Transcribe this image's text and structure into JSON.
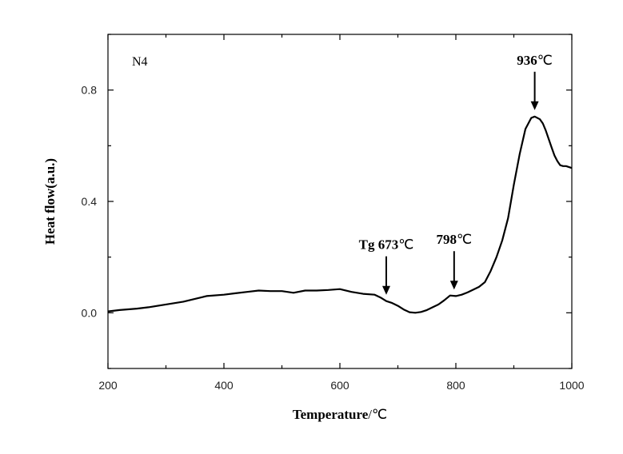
{
  "chart_data": {
    "type": "line",
    "panel_label": "N4",
    "xlabel": "Temperature",
    "xlabel_unit": "/℃",
    "ylabel": "Heat flow(a.u.)",
    "xlim": [
      200,
      1000
    ],
    "ylim": [
      -0.2,
      1.0
    ],
    "xticks": [
      200,
      400,
      600,
      800,
      1000
    ],
    "yticks": [
      0.0,
      0.4,
      0.8
    ],
    "ytick_labels": [
      "0.0",
      "0.4",
      "0.8"
    ],
    "grid": false,
    "series": [
      {
        "x": [
          200,
          220,
          250,
          270,
          300,
          330,
          350,
          370,
          400,
          420,
          440,
          460,
          480,
          500,
          520,
          540,
          560,
          580,
          600,
          620,
          640,
          660,
          670,
          680,
          690,
          700,
          710,
          720,
          730,
          740,
          750,
          760,
          770,
          780,
          790,
          800,
          810,
          820,
          830,
          840,
          850,
          860,
          870,
          880,
          890,
          900,
          910,
          920,
          930,
          936,
          945,
          950,
          955,
          960,
          965,
          970,
          975,
          980,
          985,
          990,
          1000
        ],
        "y": [
          0.005,
          0.01,
          0.015,
          0.02,
          0.03,
          0.04,
          0.05,
          0.06,
          0.065,
          0.07,
          0.075,
          0.08,
          0.078,
          0.078,
          0.072,
          0.08,
          0.08,
          0.082,
          0.085,
          0.075,
          0.068,
          0.065,
          0.055,
          0.042,
          0.035,
          0.025,
          0.012,
          0.002,
          0.0,
          0.003,
          0.01,
          0.02,
          0.03,
          0.045,
          0.062,
          0.06,
          0.065,
          0.073,
          0.083,
          0.093,
          0.11,
          0.15,
          0.2,
          0.26,
          0.34,
          0.46,
          0.57,
          0.66,
          0.7,
          0.705,
          0.695,
          0.68,
          0.655,
          0.625,
          0.595,
          0.565,
          0.545,
          0.53,
          0.527,
          0.527,
          0.52
        ]
      }
    ],
    "annotations": [
      {
        "bold": "Tg 673",
        "unit": "℃",
        "x": 680
      },
      {
        "bold": "798",
        "unit": "℃",
        "x": 797
      },
      {
        "bold": "936",
        "unit": "℃",
        "x": 936
      }
    ]
  }
}
